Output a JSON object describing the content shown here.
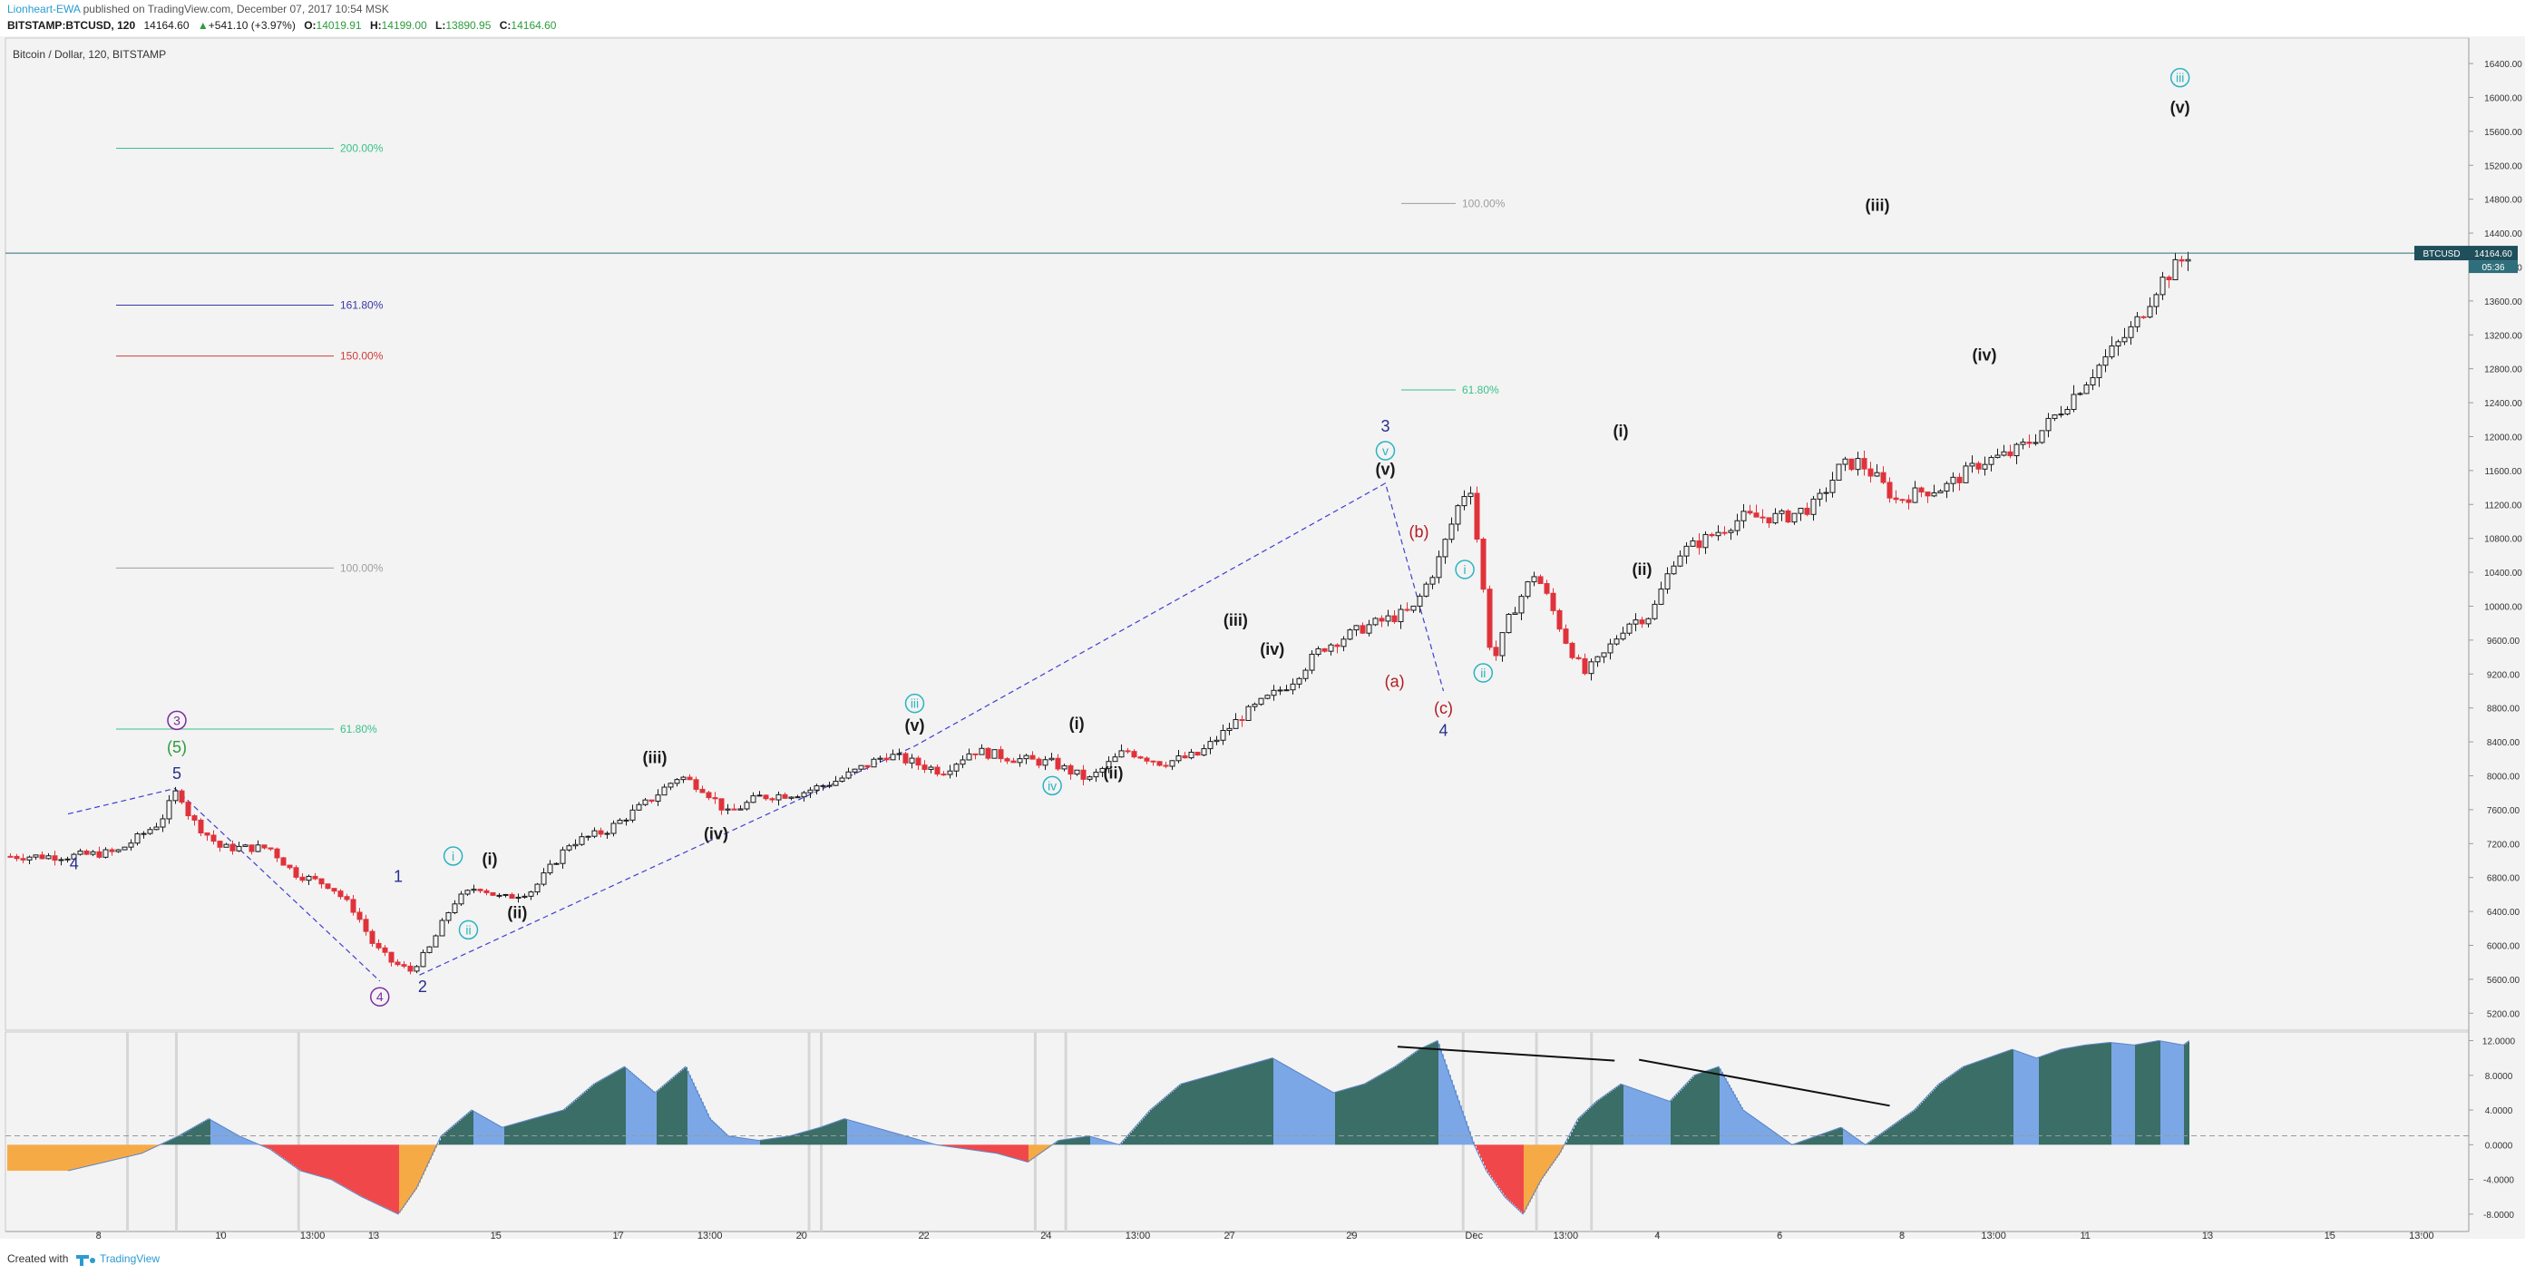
{
  "header": {
    "author": "Lionheart-EWA",
    "published_text": " published on TradingView.com, December 07, 2017 10:54 MSK"
  },
  "quote": {
    "symbol": "BITSTAMP:BTCUSD, 120",
    "last": "14164.60",
    "change": "+541.10 (+3.97%)",
    "o_label": "O:",
    "o": "14019.91",
    "h_label": "H:",
    "h": "14199.00",
    "l_label": "L:",
    "l": "13890.95",
    "c_label": "C:",
    "c": "14164.60"
  },
  "legend": {
    "title": "Bitcoin / Dollar, 120, BITSTAMP"
  },
  "footer": {
    "created_with": "Created with",
    "brand": "TradingView"
  },
  "price_tag": {
    "symbol": "BTCUSD",
    "price": "14164.60",
    "countdown": "05:36"
  },
  "colors": {
    "up": "#1b1b1b",
    "down": "#e0323a",
    "teal": "#2ab3c0",
    "navy": "#262f8c",
    "purple": "#7b2ca0",
    "green": "#2e9b3e",
    "red_label": "#b11b22",
    "fib_green": "#38c28a",
    "fib_navy": "#3a36a8",
    "fib_red": "#d23b3b",
    "fib_gray": "#9e9e9e",
    "osc_green": "#3a6e66",
    "osc_blue": "#7ba7e6",
    "osc_red": "#f0484a",
    "osc_orange": "#f6aa46"
  },
  "chart_data": {
    "type": "candlestick",
    "price_axis": {
      "ylim": [
        5000,
        16700
      ],
      "ticks": [
        "5200.00",
        "5600.00",
        "6000.00",
        "6400.00",
        "6800.00",
        "7200.00",
        "7600.00",
        "8000.00",
        "8400.00",
        "8800.00",
        "9200.00",
        "9600.00",
        "10000.00",
        "10400.00",
        "10800.00",
        "11200.00",
        "11600.00",
        "12000.00",
        "12400.00",
        "12800.00",
        "13200.00",
        "13600.00",
        "14000.00",
        "14400.00",
        "14800.00",
        "15200.00",
        "15600.00",
        "16000.00",
        "16400.00"
      ]
    },
    "time_axis": {
      "labels": [
        "8",
        "10",
        "13:00",
        "13",
        "15",
        "17",
        "13:00",
        "20",
        "22",
        "24",
        "13:00",
        "27",
        "29",
        "Dec",
        "13:00",
        "4",
        "6",
        "8",
        "13:00",
        "11",
        "13",
        "15",
        "13:00"
      ],
      "positions": [
        0.5,
        2.5,
        4,
        5,
        7,
        9,
        10.5,
        12,
        14,
        16,
        17.5,
        19,
        21,
        23,
        24.5,
        26,
        28,
        30,
        31.5,
        33,
        35,
        37,
        38.5
      ]
    },
    "price_path": [
      [
        0,
        7050
      ],
      [
        0.8,
        7100
      ],
      [
        1.5,
        7450
      ],
      [
        1.8,
        7850
      ],
      [
        2.0,
        7500
      ],
      [
        2.5,
        7150
      ],
      [
        3.3,
        7150
      ],
      [
        3.7,
        6850
      ],
      [
        4.3,
        6700
      ],
      [
        4.7,
        6400
      ],
      [
        5.0,
        6000
      ],
      [
        5.3,
        5800
      ],
      [
        5.6,
        5700
      ],
      [
        5.9,
        5950
      ],
      [
        6.3,
        6500
      ],
      [
        6.7,
        6700
      ],
      [
        7.1,
        6550
      ],
      [
        7.6,
        6650
      ],
      [
        8.2,
        7200
      ],
      [
        8.8,
        7350
      ],
      [
        9.5,
        7700
      ],
      [
        10,
        8000
      ],
      [
        10.4,
        7850
      ],
      [
        10.8,
        7550
      ],
      [
        11.3,
        7750
      ],
      [
        12,
        7800
      ],
      [
        12.6,
        7950
      ],
      [
        13.4,
        8250
      ],
      [
        14.3,
        8050
      ],
      [
        14.8,
        8300
      ],
      [
        15.5,
        8200
      ],
      [
        16.1,
        8150
      ],
      [
        16.7,
        7950
      ],
      [
        17.3,
        8300
      ],
      [
        17.9,
        8150
      ],
      [
        18.5,
        8250
      ],
      [
        19.2,
        8700
      ],
      [
        20,
        9100
      ],
      [
        20.5,
        9500
      ],
      [
        21.2,
        9750
      ],
      [
        22.0,
        9950
      ],
      [
        22.4,
        10500
      ],
      [
        22.8,
        11300
      ],
      [
        22.95,
        11400
      ],
      [
        23.1,
        10500
      ],
      [
        23.3,
        9300
      ],
      [
        23.6,
        9900
      ],
      [
        24.0,
        10400
      ],
      [
        24.2,
        10100
      ],
      [
        24.5,
        9600
      ],
      [
        24.8,
        9200
      ],
      [
        25.1,
        9400
      ],
      [
        25.5,
        9800
      ],
      [
        25.9,
        9900
      ],
      [
        26.3,
        10600
      ],
      [
        26.8,
        10800
      ],
      [
        27.4,
        11050
      ],
      [
        28.1,
        11050
      ],
      [
        28.6,
        11200
      ],
      [
        29.0,
        11650
      ],
      [
        29.3,
        11700
      ],
      [
        29.6,
        11500
      ],
      [
        29.9,
        11250
      ],
      [
        30.3,
        11350
      ],
      [
        30.7,
        11400
      ],
      [
        31.3,
        11700
      ],
      [
        31.8,
        11800
      ],
      [
        32.2,
        12000
      ],
      [
        32.7,
        12400
      ],
      [
        33.3,
        12900
      ],
      [
        33.8,
        13300
      ],
      [
        34.2,
        13800
      ],
      [
        34.7,
        14164.6
      ]
    ],
    "series": [
      {
        "name": "",
        "x": [
          0,
          0.6,
          1.2,
          1.8,
          2.3,
          2.8,
          3.3,
          3.8,
          4.3,
          4.8,
          5.1,
          5.4,
          5.7,
          6.1,
          6.6,
          7.1,
          7.6,
          8.1,
          8.6,
          9.1,
          9.6,
          10.1,
          10.5,
          10.8,
          11.3,
          11.8,
          12.3,
          12.7,
          13.2,
          13.7,
          14.2,
          14.7,
          15.2,
          15.7,
          16.2,
          16.7,
          17.2,
          17.7,
          18.2,
          18.7,
          19.2,
          19.7,
          20.2,
          20.7,
          21.2,
          21.7,
          22.1,
          22.4,
          22.8,
          23.0,
          23.2,
          23.5,
          23.8,
          24.1,
          24.4,
          24.7,
          25.0,
          25.4,
          25.8,
          26.2,
          26.6,
          27.0,
          27.4,
          27.8,
          28.2,
          28.6,
          29.0,
          29.4,
          29.8,
          30.2,
          30.6,
          31.0,
          31.4,
          31.8,
          32.2,
          32.6,
          33.0,
          33.4,
          33.8,
          34.2,
          34.6,
          34.7
        ],
        "values": [
          -3,
          -2,
          -1,
          1,
          3,
          1,
          -0.5,
          -3,
          -4,
          -6,
          -7,
          -8,
          -5,
          1,
          4,
          2,
          3,
          4,
          7,
          9,
          6,
          9,
          3,
          1,
          0.5,
          1,
          2,
          3,
          2,
          1,
          0,
          -0.5,
          -1,
          -2,
          0.5,
          1,
          0,
          4,
          7,
          8,
          9,
          10,
          8,
          6,
          7,
          9,
          11,
          12,
          4,
          0,
          -3,
          -6,
          -8,
          -4,
          -1,
          3,
          5,
          7,
          6,
          5,
          8,
          9,
          4,
          2,
          0,
          1,
          2,
          0,
          2,
          4,
          7,
          9,
          10,
          11,
          10,
          11,
          11.5,
          11.8,
          11.5,
          12,
          11.5,
          12
        ]
      }
    ],
    "oscillator_axis": {
      "ylim": [
        -10,
        13
      ],
      "ticks": [
        "12.0000",
        "8.0000",
        "4.0000",
        "0.0000",
        "-4.0000",
        "-8.0000"
      ]
    },
    "fib_levels": [
      {
        "label": "200.00%",
        "value": 15400,
        "color": "fib_green"
      },
      {
        "label": "161.80%",
        "value": 13550,
        "color": "fib_navy"
      },
      {
        "label": "150.00%",
        "value": 12950,
        "color": "fib_red"
      },
      {
        "label": "100.00%",
        "value": 10450,
        "color": "fib_gray"
      },
      {
        "label": "61.80%",
        "value": 8550,
        "color": "fib_green"
      },
      {
        "label": "100.00%",
        "value": 14750,
        "color": "fib_gray"
      },
      {
        "label": "61.80%",
        "value": 12550,
        "color": "fib_green"
      }
    ],
    "wave_labels": [
      {
        "text": "4",
        "color": "navy",
        "x": 0.1,
        "p": 6900
      },
      {
        "text": "3",
        "color": "purple",
        "circle": true,
        "x": 1.78,
        "p": 8600
      },
      {
        "text": "(5)",
        "color": "green",
        "x": 1.78,
        "p": 8270
      },
      {
        "text": "5",
        "color": "navy",
        "x": 1.78,
        "p": 7960
      },
      {
        "text": "1",
        "color": "navy",
        "x": 5.4,
        "p": 6750
      },
      {
        "text": "4",
        "color": "purple",
        "circle": true,
        "x": 5.1,
        "p": 5340
      },
      {
        "text": "2",
        "color": "navy",
        "x": 5.8,
        "p": 5450
      },
      {
        "text": "i",
        "color": "teal",
        "circle": true,
        "x": 6.3,
        "p": 7000
      },
      {
        "text": "(i)",
        "color": "up",
        "x": 6.9,
        "p": 6950
      },
      {
        "text": "ii",
        "color": "teal",
        "circle": true,
        "x": 6.55,
        "p": 6130
      },
      {
        "text": "(ii)",
        "color": "up",
        "x": 7.35,
        "p": 6320
      },
      {
        "text": "(iii)",
        "color": "up",
        "x": 9.6,
        "p": 8150
      },
      {
        "text": "(iv)",
        "color": "up",
        "x": 10.6,
        "p": 7250
      },
      {
        "text": "iii",
        "color": "teal",
        "circle": true,
        "x": 13.85,
        "p": 8800
      },
      {
        "text": "(v)",
        "color": "up",
        "x": 13.85,
        "p": 8530
      },
      {
        "text": "iv",
        "color": "teal",
        "circle": true,
        "x": 16.1,
        "p": 7830
      },
      {
        "text": "(i)",
        "color": "up",
        "x": 16.5,
        "p": 8550
      },
      {
        "text": "(ii)",
        "color": "up",
        "x": 17.1,
        "p": 7970
      },
      {
        "text": "(iii)",
        "color": "up",
        "x": 19.1,
        "p": 9770
      },
      {
        "text": "(iv)",
        "color": "up",
        "x": 19.7,
        "p": 9430
      },
      {
        "text": "3",
        "color": "navy",
        "x": 21.55,
        "p": 12060
      },
      {
        "text": "v",
        "color": "teal",
        "circle": true,
        "x": 21.55,
        "p": 11780
      },
      {
        "text": "(v)",
        "color": "up",
        "x": 21.55,
        "p": 11550
      },
      {
        "text": "(b)",
        "color": "red_label",
        "x": 22.1,
        "p": 10810
      },
      {
        "text": "(a)",
        "color": "red_label",
        "x": 21.7,
        "p": 9050
      },
      {
        "text": "(c)",
        "color": "red_label",
        "x": 22.5,
        "p": 8730
      },
      {
        "text": "4",
        "color": "navy",
        "x": 22.5,
        "p": 8470
      },
      {
        "text": "i",
        "color": "teal",
        "circle": true,
        "x": 22.85,
        "p": 10380
      },
      {
        "text": "ii",
        "color": "teal",
        "circle": true,
        "x": 23.15,
        "p": 9160
      },
      {
        "text": "(i)",
        "color": "up",
        "x": 25.4,
        "p": 12000
      },
      {
        "text": "(ii)",
        "color": "up",
        "x": 25.75,
        "p": 10370
      },
      {
        "text": "(iii)",
        "color": "up",
        "x": 29.6,
        "p": 14660
      },
      {
        "text": "(iv)",
        "color": "up",
        "x": 31.35,
        "p": 12900
      },
      {
        "text": "iii",
        "color": "teal",
        "circle": true,
        "x": 34.55,
        "p": 16180
      },
      {
        "text": "(v)",
        "color": "up",
        "x": 34.55,
        "p": 15820
      }
    ],
    "dashed_lines": [
      [
        [
          0,
          7550
        ],
        [
          1.75,
          7850
        ],
        [
          5.1,
          5580
        ]
      ],
      [
        [
          5.75,
          5650
        ],
        [
          13.85,
          8350
        ],
        [
          21.55,
          11450
        ],
        [
          22.5,
          9000
        ]
      ]
    ],
    "osc_trendlines": [
      [
        [
          21.75,
          11.3
        ],
        [
          25.3,
          9.7
        ]
      ],
      [
        [
          25.7,
          9.8
        ],
        [
          29.8,
          4.5
        ]
      ]
    ]
  }
}
